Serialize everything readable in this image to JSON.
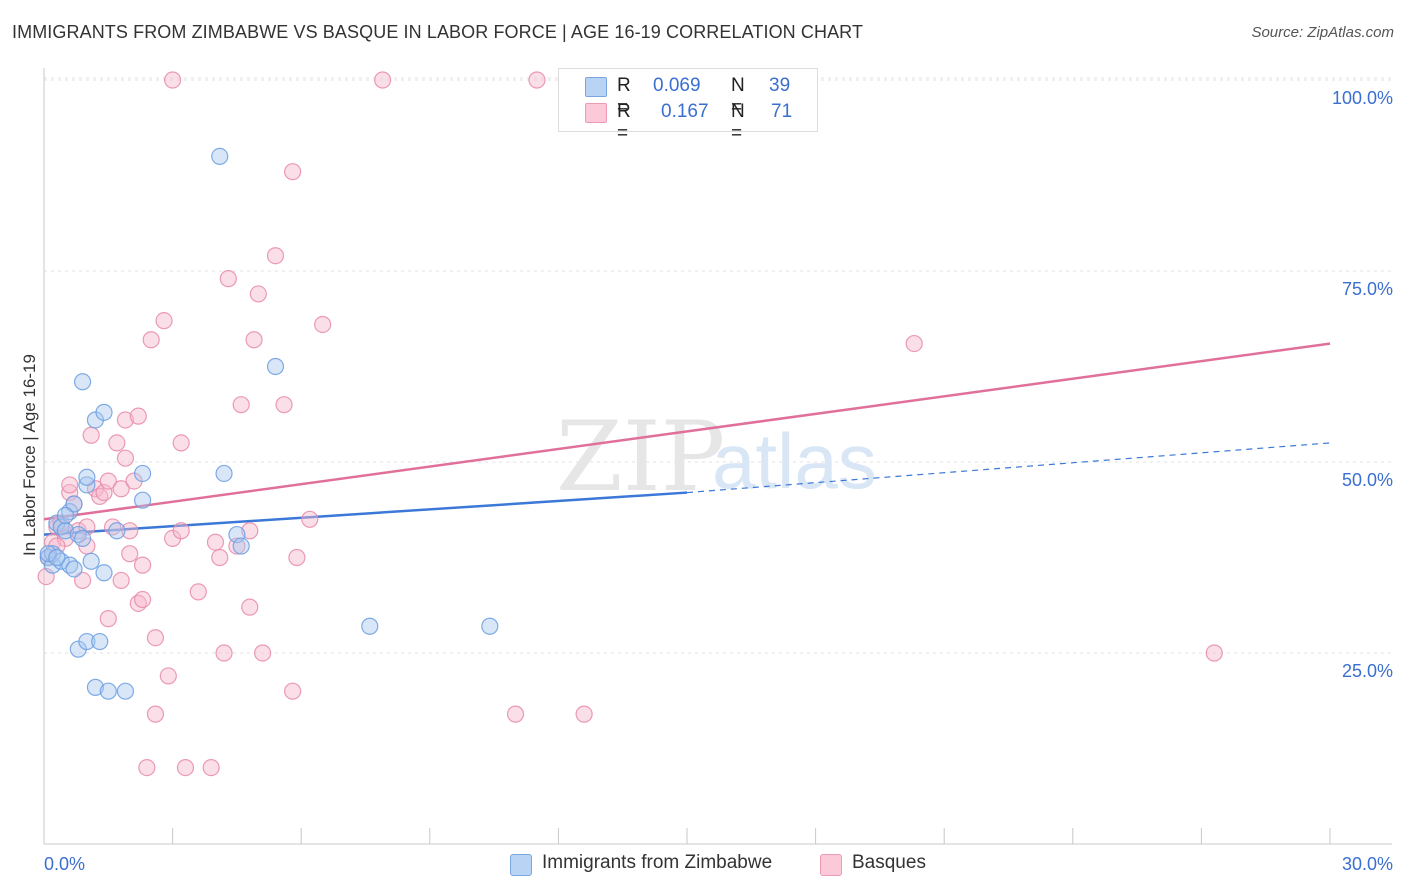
{
  "title": "IMMIGRANTS FROM ZIMBABWE VS BASQUE IN LABOR FORCE | AGE 16-19 CORRELATION CHART",
  "source": "Source: ZipAtlas.com",
  "watermark": {
    "zip": "ZIP",
    "atlas": "atlas"
  },
  "legend": {
    "r_label": "R =",
    "n_label": "N =",
    "rows": [
      {
        "r": "0.069",
        "n": "39",
        "color": "#a8c8f0"
      },
      {
        "r": "0.167",
        "n": "71",
        "color": "#f7b8cc"
      }
    ]
  },
  "chart_data": {
    "type": "scatter",
    "xlabel": "",
    "ylabel": "In Labor Force | Age 16-19",
    "xlim": [
      0,
      30
    ],
    "ylim": [
      0,
      105
    ],
    "x_tick_labels": [
      "0.0%",
      "30.0%"
    ],
    "y_tick_labels": [
      "100.0%",
      "75.0%",
      "50.0%",
      "25.0%"
    ],
    "y_ticks": [
      100,
      75,
      50,
      25
    ],
    "grid": true,
    "legend_position": "bottom",
    "series": [
      {
        "name": "Immigrants from Zimbabwe",
        "color": "#6a9de0",
        "fill": "#a8c8f0",
        "trend": {
          "x0": 0,
          "y0": 40.5,
          "x1": 15,
          "y1": 46,
          "x_end": 30,
          "y_end": 52.5
        },
        "points": [
          [
            0.1,
            37.5
          ],
          [
            0.2,
            36.5
          ],
          [
            0.2,
            38
          ],
          [
            0.3,
            42
          ],
          [
            0.4,
            41.5
          ],
          [
            0.4,
            37
          ],
          [
            0.5,
            41
          ],
          [
            0.6,
            36.5
          ],
          [
            0.6,
            43.5
          ],
          [
            0.7,
            36
          ],
          [
            0.7,
            44.5
          ],
          [
            0.8,
            40.5
          ],
          [
            0.8,
            25.5
          ],
          [
            0.9,
            60.5
          ],
          [
            0.9,
            40
          ],
          [
            1.0,
            26.5
          ],
          [
            1.0,
            47
          ],
          [
            1.0,
            48
          ],
          [
            1.1,
            37
          ],
          [
            1.2,
            55.5
          ],
          [
            1.2,
            20.5
          ],
          [
            1.3,
            26.5
          ],
          [
            1.4,
            35.5
          ],
          [
            1.4,
            56.5
          ],
          [
            1.5,
            20
          ],
          [
            1.7,
            41
          ],
          [
            1.9,
            20
          ],
          [
            2.3,
            45
          ],
          [
            2.3,
            48.5
          ],
          [
            4.1,
            90
          ],
          [
            4.2,
            48.5
          ],
          [
            4.5,
            40.5
          ],
          [
            4.6,
            39
          ],
          [
            5.4,
            62.5
          ],
          [
            7.6,
            28.5
          ],
          [
            10.4,
            28.5
          ],
          [
            0.1,
            38
          ],
          [
            0.3,
            37.5
          ],
          [
            0.5,
            43
          ]
        ]
      },
      {
        "name": "Basques",
        "color": "#e88aa8",
        "fill": "#f7b8cc",
        "trend": {
          "x0": 0,
          "y0": 42.5,
          "x1": 30,
          "y1": 65.5
        },
        "points": [
          [
            0.05,
            35
          ],
          [
            0.1,
            37.5
          ],
          [
            0.2,
            39.5
          ],
          [
            0.3,
            41.5
          ],
          [
            0.4,
            42
          ],
          [
            0.5,
            40
          ],
          [
            0.6,
            46
          ],
          [
            0.7,
            44.5
          ],
          [
            0.8,
            41
          ],
          [
            0.9,
            34.5
          ],
          [
            1.0,
            39
          ],
          [
            1.0,
            41.5
          ],
          [
            1.1,
            53.5
          ],
          [
            1.2,
            46.5
          ],
          [
            1.3,
            45.5
          ],
          [
            1.4,
            46
          ],
          [
            1.5,
            47.5
          ],
          [
            1.5,
            29.5
          ],
          [
            1.6,
            41.5
          ],
          [
            1.7,
            52.5
          ],
          [
            1.8,
            46.5
          ],
          [
            1.8,
            34.5
          ],
          [
            1.9,
            50.5
          ],
          [
            1.9,
            55.5
          ],
          [
            2.0,
            41
          ],
          [
            2.0,
            38
          ],
          [
            2.1,
            47.5
          ],
          [
            2.2,
            31.5
          ],
          [
            2.2,
            56
          ],
          [
            2.3,
            32
          ],
          [
            2.3,
            36.5
          ],
          [
            2.4,
            10
          ],
          [
            2.5,
            66
          ],
          [
            2.6,
            17
          ],
          [
            2.6,
            27
          ],
          [
            2.8,
            68.5
          ],
          [
            2.9,
            22
          ],
          [
            3.0,
            40
          ],
          [
            3.0,
            100
          ],
          [
            3.2,
            52.5
          ],
          [
            3.2,
            41
          ],
          [
            3.3,
            10
          ],
          [
            3.6,
            33
          ],
          [
            3.9,
            10
          ],
          [
            4.0,
            39.5
          ],
          [
            4.1,
            37.5
          ],
          [
            4.2,
            25
          ],
          [
            4.3,
            74
          ],
          [
            4.5,
            39
          ],
          [
            4.6,
            57.5
          ],
          [
            4.8,
            31
          ],
          [
            4.8,
            41
          ],
          [
            4.9,
            66
          ],
          [
            5.0,
            72
          ],
          [
            5.1,
            25
          ],
          [
            5.4,
            77
          ],
          [
            5.6,
            57.5
          ],
          [
            5.8,
            88
          ],
          [
            5.8,
            20
          ],
          [
            5.9,
            37.5
          ],
          [
            6.2,
            42.5
          ],
          [
            6.5,
            68
          ],
          [
            7.9,
            100
          ],
          [
            11.0,
            17
          ],
          [
            11.5,
            100
          ],
          [
            12.6,
            17
          ],
          [
            14.9,
            100
          ],
          [
            20.3,
            65.5
          ],
          [
            27.3,
            25
          ],
          [
            0.3,
            39
          ],
          [
            0.6,
            47
          ]
        ]
      }
    ]
  }
}
